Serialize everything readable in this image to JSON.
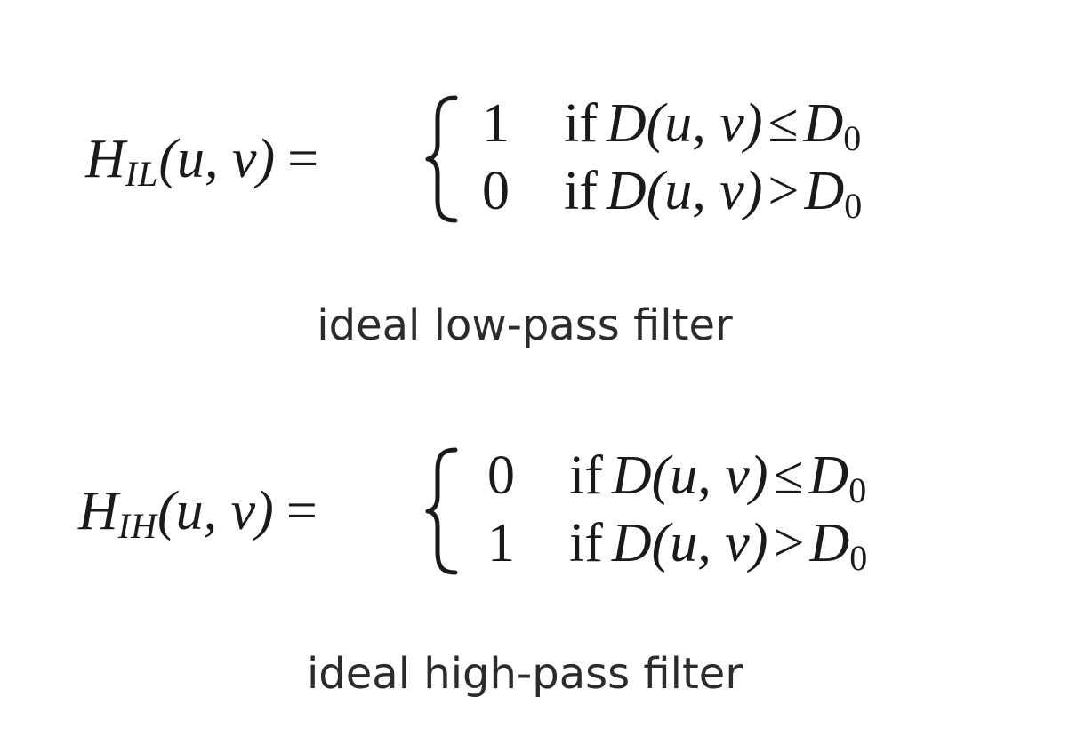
{
  "low_pass": {
    "symbol": "H",
    "subscript": "IL",
    "args": "(u, v)",
    "equals": "=",
    "cases": [
      {
        "value": "1",
        "condition_word": "if",
        "expr": "D(u, v)",
        "relation": "≤",
        "rhs": "D",
        "rhs_sub": "0"
      },
      {
        "value": "0",
        "condition_word": "if",
        "expr": "D(u, v)",
        "relation": ">",
        "rhs": "D",
        "rhs_sub": "0"
      }
    ],
    "caption": "ideal low-pass filter"
  },
  "high_pass": {
    "symbol": "H",
    "subscript": "IH",
    "args": "(u, v)",
    "equals": "=",
    "cases": [
      {
        "value": "0",
        "condition_word": "if",
        "expr": "D(u, v)",
        "relation": "≤",
        "rhs": "D",
        "rhs_sub": "0"
      },
      {
        "value": "1",
        "condition_word": "if",
        "expr": "D(u, v)",
        "relation": ">",
        "rhs": "D",
        "rhs_sub": "0"
      }
    ],
    "caption": "ideal high-pass filter"
  }
}
